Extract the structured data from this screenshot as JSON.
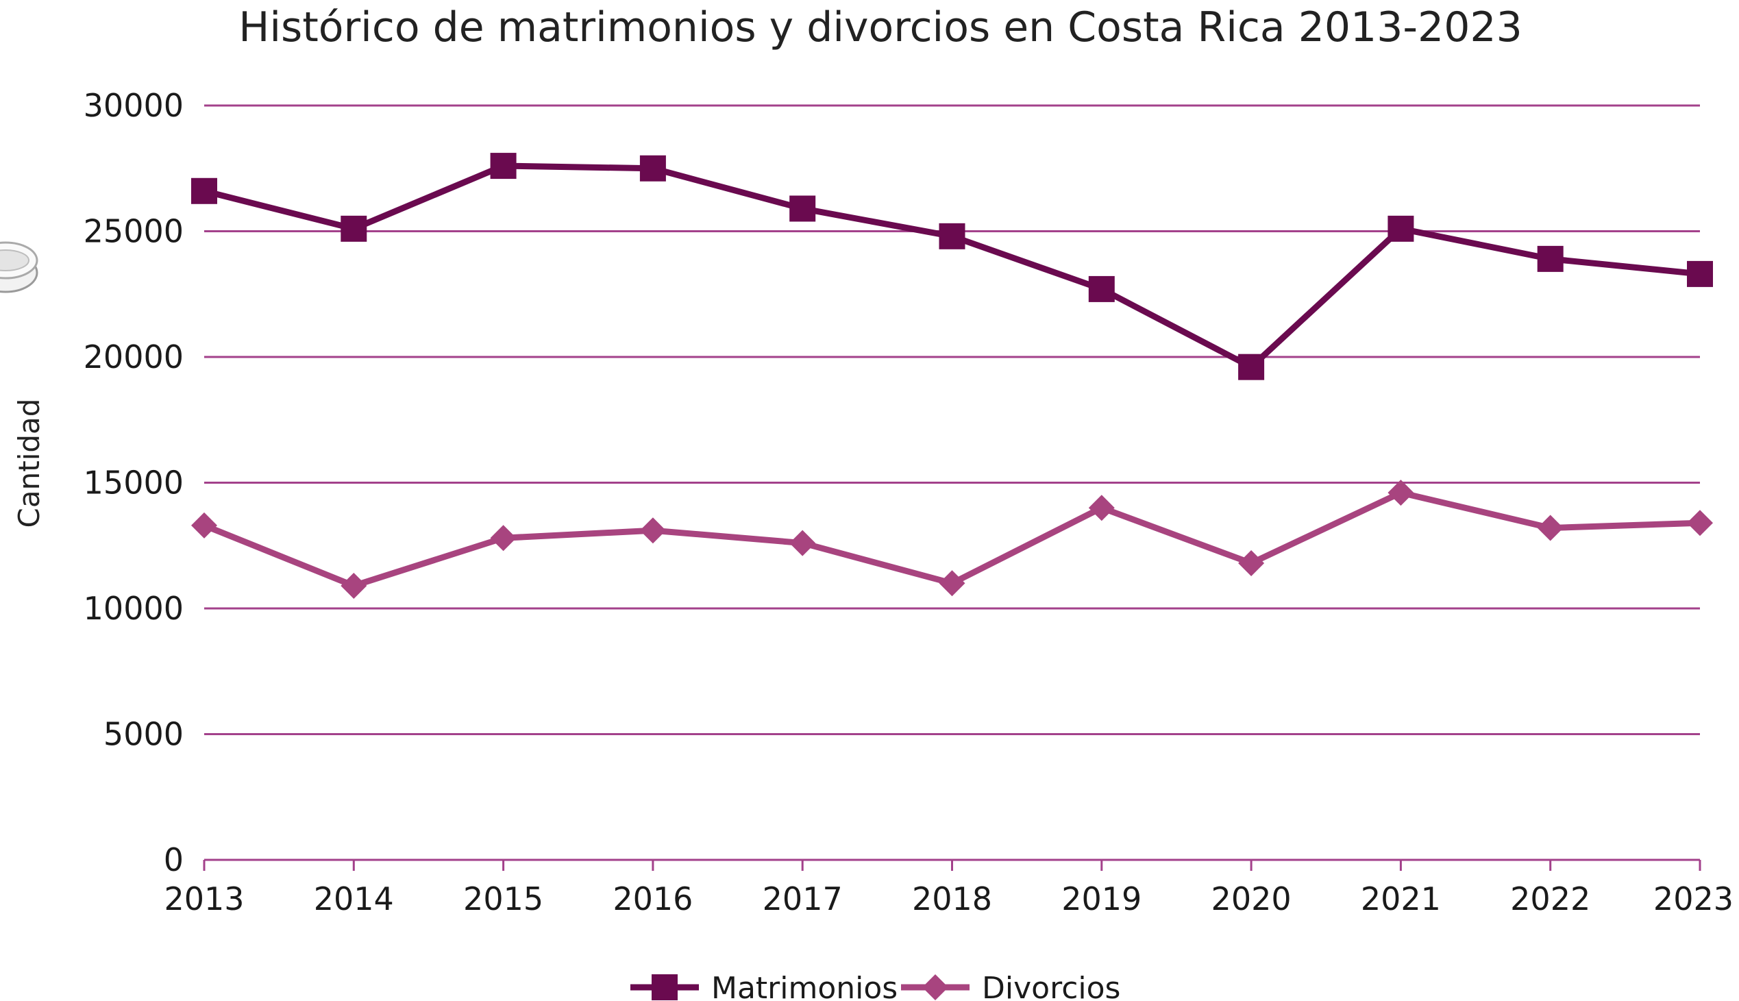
{
  "chart_data": {
    "type": "line",
    "title": "Histórico de matrimonios y divorcios en Costa Rica 2013-2023",
    "xlabel": "",
    "ylabel": "Cantidad",
    "ylim": [
      0,
      30000
    ],
    "y_ticks": [
      0,
      5000,
      10000,
      15000,
      20000,
      25000,
      30000
    ],
    "categories": [
      "2013",
      "2014",
      "2015",
      "2016",
      "2017",
      "2018",
      "2019",
      "2020",
      "2021",
      "2022",
      "2023"
    ],
    "grid": true,
    "legend": "bottom",
    "series": [
      {
        "name": "Matrimonios",
        "marker": "square",
        "color": "#6a0a4f",
        "values": [
          26600,
          25100,
          27600,
          27500,
          25900,
          24800,
          22700,
          19600,
          25100,
          23900,
          23300
        ]
      },
      {
        "name": "Divorcios",
        "marker": "diamond",
        "color": "#a8447f",
        "values": [
          13300,
          10900,
          12800,
          13100,
          12600,
          11000,
          14000,
          11800,
          14600,
          13200,
          13400
        ]
      }
    ],
    "gridline_color": "#a3418b"
  }
}
